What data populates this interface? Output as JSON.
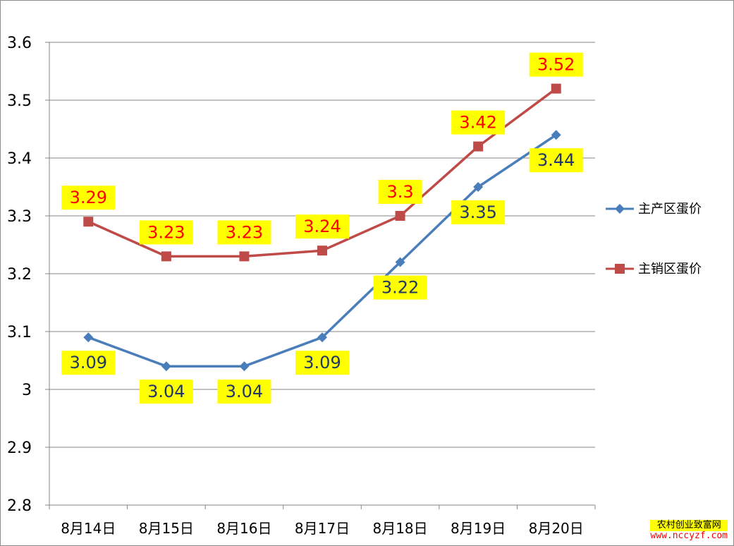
{
  "chart_data": {
    "type": "line",
    "categories": [
      "8月14日",
      "8月15日",
      "8月16日",
      "8月17日",
      "8月18日",
      "8月19日",
      "8月20日"
    ],
    "series": [
      {
        "name": "主产区蛋价",
        "values": [
          3.09,
          3.04,
          3.04,
          3.09,
          3.22,
          3.35,
          3.44
        ],
        "labels": [
          "3.09",
          "3.04",
          "3.04",
          "3.09",
          "3.22",
          "3.35",
          "3.44"
        ],
        "color": "#4a7ebb",
        "marker": "diamond",
        "label_color": "#1f3864",
        "label_position": "below"
      },
      {
        "name": "主销区蛋价",
        "values": [
          3.29,
          3.23,
          3.23,
          3.24,
          3.3,
          3.42,
          3.52
        ],
        "labels": [
          "3.29",
          "3.23",
          "3.23",
          "3.24",
          "3.3",
          "3.42",
          "3.52"
        ],
        "color": "#be4b48",
        "marker": "square",
        "label_color": "#ff0000",
        "label_position": "above"
      }
    ],
    "ylim": [
      2.8,
      3.6
    ],
    "yticks": [
      "2.8",
      "2.9",
      "3",
      "3.1",
      "3.2",
      "3.3",
      "3.4",
      "3.5",
      "3.6"
    ],
    "grid": true,
    "legend": "right",
    "label_background": "#ffff00"
  },
  "watermark": {
    "name": "农村创业致富网",
    "url": "www.nccyzf.com"
  }
}
